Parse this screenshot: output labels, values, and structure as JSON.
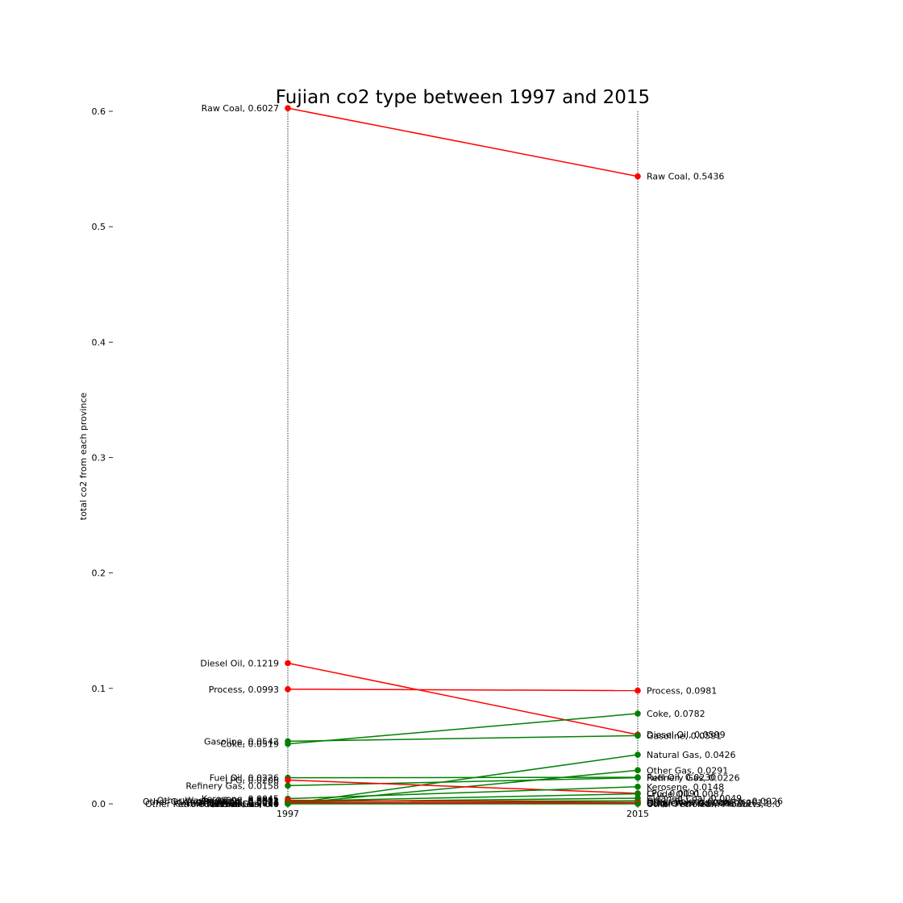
{
  "chart_data": {
    "type": "line",
    "title": "Fujian co2 type between 1997 and 2015",
    "xlabel": "",
    "ylabel": "total co2 from each province",
    "x": [
      "1997",
      "2015"
    ],
    "ylim": [
      0,
      0.6
    ],
    "yticks": [
      "0.0",
      "0.1",
      "0.2",
      "0.3",
      "0.4",
      "0.5",
      "0.6"
    ],
    "grid": false,
    "colors": {
      "decrease": "#ff0000",
      "increase": "#008000",
      "guides": "#000000"
    },
    "series": [
      {
        "name": "Raw Coal",
        "values": [
          0.6027,
          0.5436
        ],
        "label_1997": "Raw Coal, 0.6027",
        "label_2015": "Raw Coal, 0.5436"
      },
      {
        "name": "Diesel Oil",
        "values": [
          0.1219,
          0.0599
        ],
        "label_1997": "Diesel Oil, 0.1219",
        "label_2015": "Diesel Oil, 0.0599"
      },
      {
        "name": "Process",
        "values": [
          0.0993,
          0.0981
        ],
        "label_1997": "Process, 0.0993",
        "label_2015": "Process, 0.0981"
      },
      {
        "name": "Coke",
        "values": [
          0.0519,
          0.0782
        ],
        "label_1997": "Coke, 0.0519",
        "label_2015": "Coke, 0.0782"
      },
      {
        "name": "Gasoline",
        "values": [
          0.0542,
          0.0591
        ],
        "label_1997": "Gasoline, 0.0542",
        "label_2015": "Gasoline, 0.0591"
      },
      {
        "name": "Natural Gas",
        "values": [
          0.0,
          0.0426
        ],
        "label_1997": "Natural Gas, 0.0",
        "label_2015": "Natural Gas, 0.0426"
      },
      {
        "name": "Other Gas",
        "values": [
          0.0,
          0.0291
        ],
        "label_1997": "Other Gas, 0.0",
        "label_2015": "Other Gas, 0.0291"
      },
      {
        "name": "Fuel Oil",
        "values": [
          0.0226,
          0.023
        ],
        "label_1997": "Fuel Oil, 0.0226",
        "label_2015": "Fuel Oil, 0.0230"
      },
      {
        "name": "Refinery Gas",
        "values": [
          0.0158,
          0.0226
        ],
        "label_1997": "Refinery Gas, 0.0158",
        "label_2015": "Refinery Gas, 0.0226"
      },
      {
        "name": "LPG",
        "values": [
          0.0206,
          0.0091
        ],
        "label_1997": "LPG, 0.0206",
        "label_2015": "LPG, 0.0091"
      },
      {
        "name": "Kerosene",
        "values": [
          0.0045,
          0.0148
        ],
        "label_1997": "Kerosene, 0.0045",
        "label_2015": "Kerosene, 0.0148"
      },
      {
        "name": "Crude Oil",
        "values": [
          0.0023,
          0.0087
        ],
        "label_1997": "Crude Oil, 0.0023",
        "label_2015": "Crude Oil, 0.0087"
      },
      {
        "name": "Cleaned Coal",
        "values": [
          0.0017,
          0.0049
        ],
        "label_1997": "Cleaned Coal, 0.0017",
        "label_2015": "Cleaned Coal, 0.0049"
      },
      {
        "name": "Other Coking Products",
        "values": [
          0.0021,
          0.0026
        ],
        "label_1997": "Other Coking Products, 0.0021",
        "label_2015": "Other Coking Products, 0.0026"
      },
      {
        "name": "Other Washed Coal",
        "values": [
          0.0031,
          0.0012
        ],
        "label_1997": "Other Washed Coal, 0.0031",
        "label_2015": "Other Washed Coal, 0.0012"
      },
      {
        "name": "Briquettes",
        "values": [
          0.0011,
          0.0009
        ],
        "label_1997": "Briquettes, 0.0011",
        "label_2015": "Briquettes, 0.0009"
      },
      {
        "name": "Coke Oven Gas",
        "values": [
          0.0004,
          0.0003
        ],
        "label_1997": "Coke Oven Gas, 0.0004",
        "label_2015": "Coke Oven Gas, 0.0003"
      },
      {
        "name": "Other Petroleum Products",
        "values": [
          0.0,
          0.0
        ],
        "label_1997": "Other Petroleum Products, 0.0",
        "label_2015": "Other Petroleum Products, 0.0"
      }
    ]
  }
}
